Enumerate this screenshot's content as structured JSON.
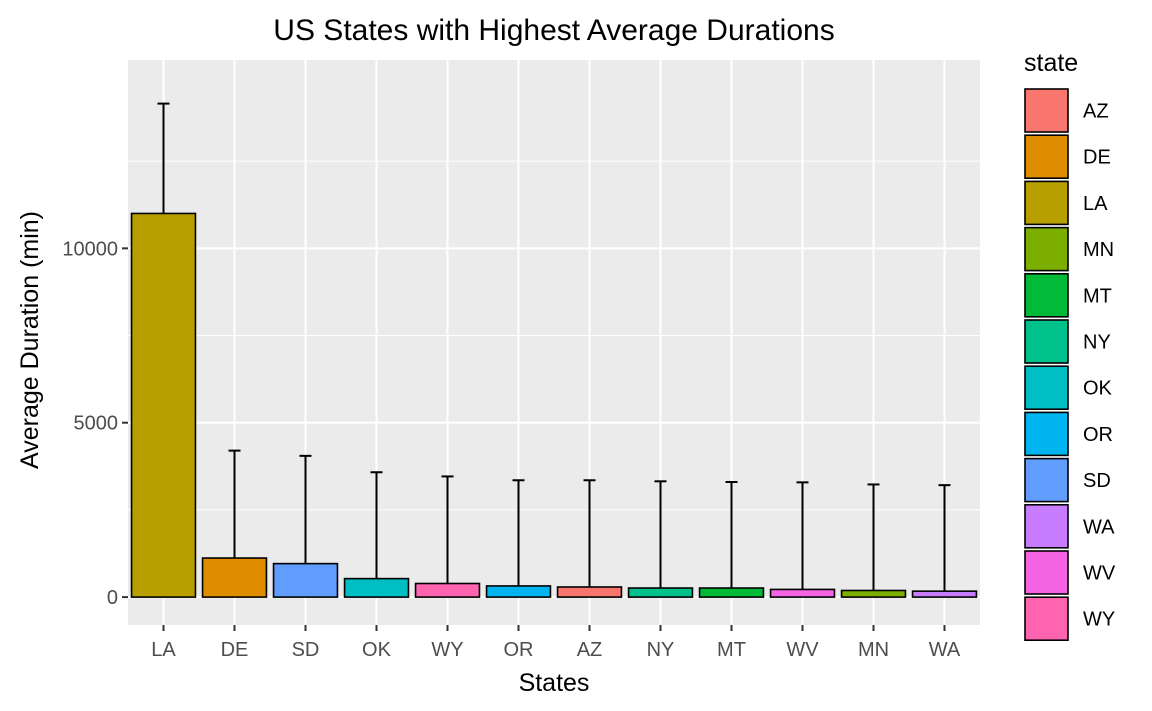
{
  "chart_data": {
    "type": "bar",
    "title": "US States with Highest Average Durations",
    "xlabel": "States",
    "ylabel": "Average Duration (min)",
    "ylim": [
      -800,
      15400
    ],
    "yticks": [
      0,
      5000,
      10000
    ],
    "grid": true,
    "legend_position": "right",
    "legend_title": "state",
    "categories": [
      "LA",
      "DE",
      "SD",
      "OK",
      "WY",
      "OR",
      "AZ",
      "NY",
      "MT",
      "WV",
      "MN",
      "WA"
    ],
    "values": [
      11000,
      1120,
      960,
      530,
      390,
      320,
      290,
      260,
      260,
      220,
      190,
      170
    ],
    "error_upper": [
      14150,
      4200,
      4050,
      3580,
      3460,
      3350,
      3350,
      3320,
      3300,
      3290,
      3230,
      3210
    ],
    "legend_entries": [
      {
        "label": "AZ",
        "color": "#F8766D"
      },
      {
        "label": "DE",
        "color": "#DE8C00"
      },
      {
        "label": "LA",
        "color": "#B79F00"
      },
      {
        "label": "MN",
        "color": "#7CAE00"
      },
      {
        "label": "MT",
        "color": "#00BA38"
      },
      {
        "label": "NY",
        "color": "#00C08B"
      },
      {
        "label": "OK",
        "color": "#00BFC4"
      },
      {
        "label": "OR",
        "color": "#00B4F0"
      },
      {
        "label": "SD",
        "color": "#619CFF"
      },
      {
        "label": "WA",
        "color": "#C77CFF"
      },
      {
        "label": "WV",
        "color": "#F564E3"
      },
      {
        "label": "WY",
        "color": "#FF64B0"
      }
    ],
    "panel_background": "#EBEBEB"
  }
}
